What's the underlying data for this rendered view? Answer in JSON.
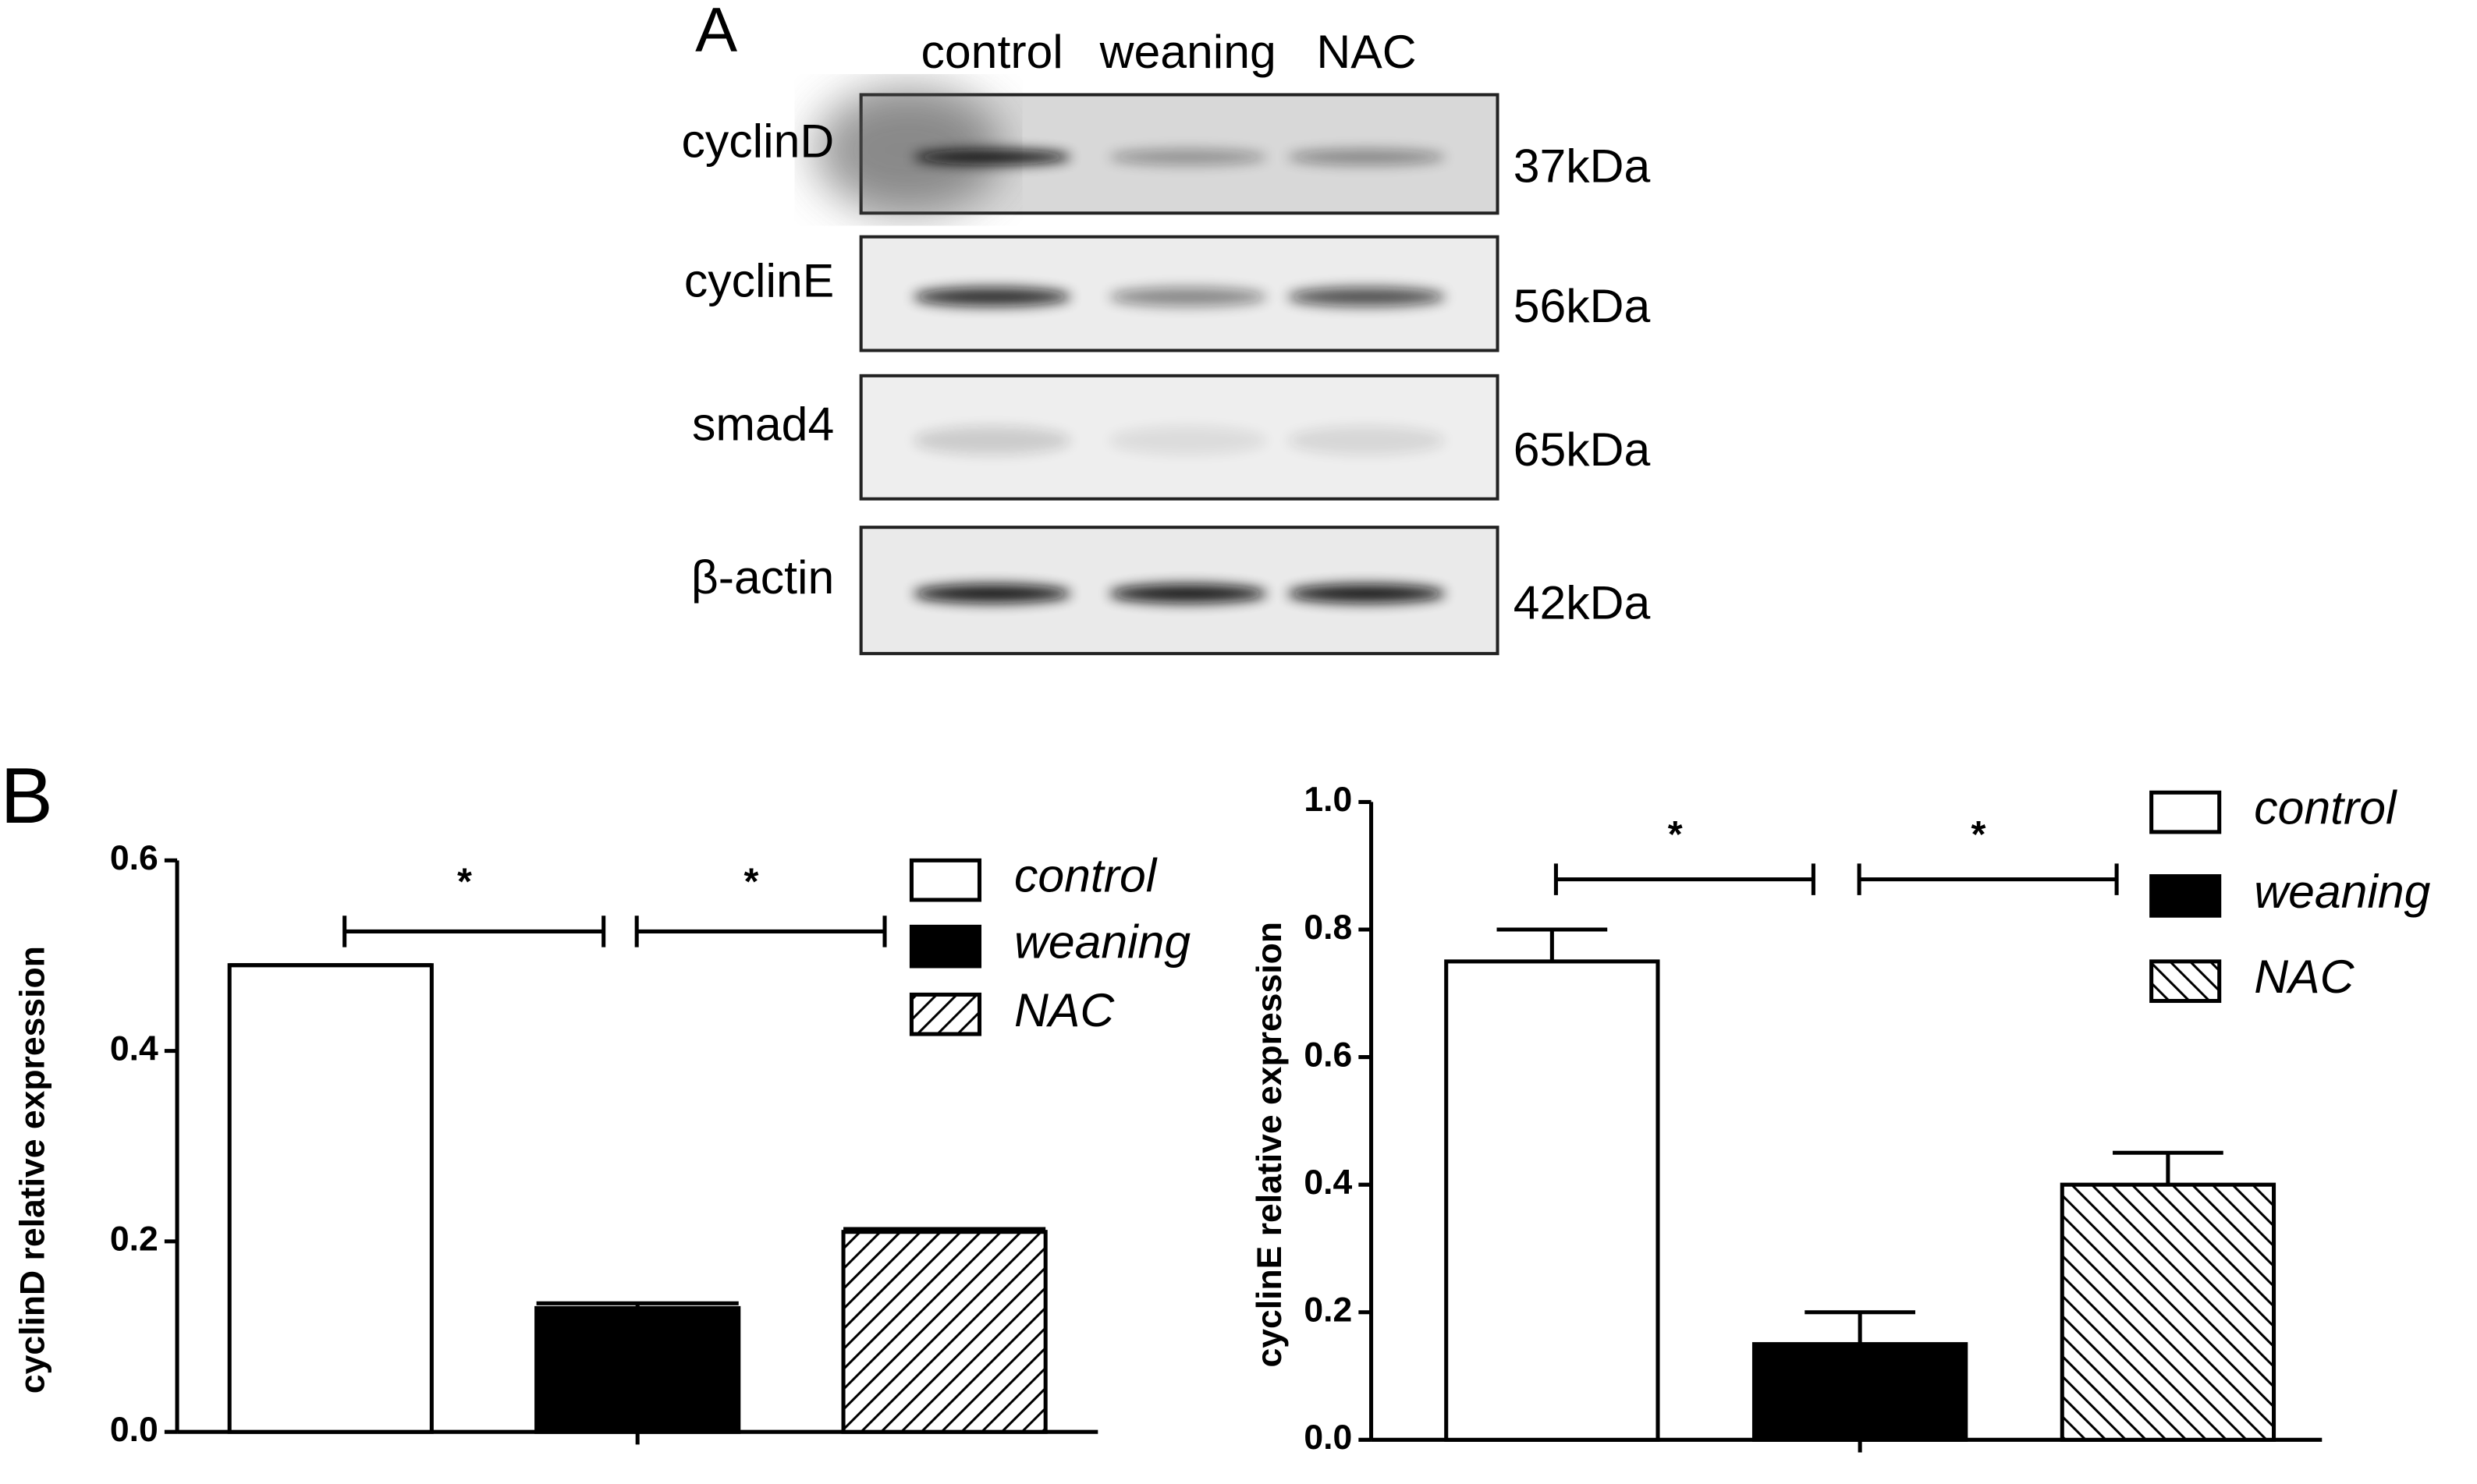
{
  "panel_labels": [
    "A",
    "B"
  ],
  "blot": {
    "lanes": [
      "control",
      "weaning",
      "NAC"
    ],
    "rows": [
      {
        "protein": "cyclinD",
        "size": "37kDa"
      },
      {
        "protein": "cyclinE",
        "size": "56kDa"
      },
      {
        "protein": "smad4",
        "size": "65kDa"
      },
      {
        "protein": "β-actin",
        "size": "42kDa"
      }
    ]
  },
  "chart_data": [
    {
      "type": "bar",
      "ylabel": "cyclinD relative expression",
      "categories": [
        "control",
        "weaning",
        "NAC"
      ],
      "values": [
        0.49,
        0.13,
        0.21
      ],
      "errors": [
        0,
        0.005,
        0.003
      ],
      "fills": [
        "white",
        "black",
        "hatch-back"
      ],
      "ylim": [
        0,
        0.6
      ],
      "yticks": [
        {
          "value": 0,
          "label": "0.0"
        },
        0.2,
        0.4,
        0.6
      ],
      "annotations": [
        "*",
        "*"
      ]
    },
    {
      "type": "bar",
      "ylabel": "cyclinE relative expression",
      "categories": [
        "control",
        "weaning",
        "NAC"
      ],
      "values": [
        0.75,
        0.15,
        0.4
      ],
      "errors": [
        0.05,
        0.05,
        0.05
      ],
      "fills": [
        "white",
        "black",
        "hatch-forward"
      ],
      "ylim": [
        0,
        1.0
      ],
      "yticks": [
        {
          "value": 0,
          "label": "0.0"
        },
        0.2,
        0.4,
        0.6,
        0.8,
        {
          "value": 1.0,
          "label": "1.0"
        }
      ],
      "annotations": [
        "*",
        "*"
      ]
    }
  ]
}
